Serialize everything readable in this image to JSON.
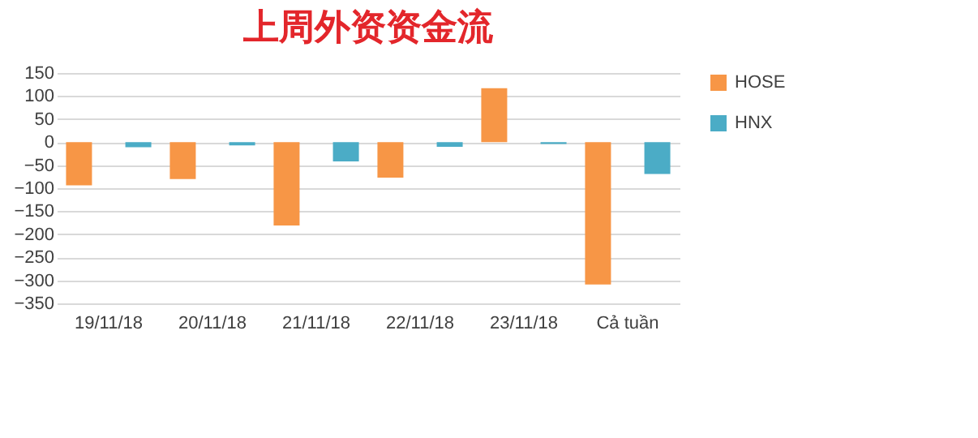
{
  "chart_data": {
    "type": "bar",
    "title": "上周外资资金流",
    "categories": [
      "19/11/18",
      "20/11/18",
      "21/11/18",
      "22/11/18",
      "23/11/18",
      "Cả tuần"
    ],
    "series": [
      {
        "name": "HOSE",
        "color": "#f79646",
        "values": [
          -94,
          -80,
          -181,
          -77,
          117,
          -309
        ]
      },
      {
        "name": "HNX",
        "color": "#4bacc6",
        "values": [
          -11,
          -7,
          -42,
          -10,
          -4,
          -69
        ]
      }
    ],
    "ylim": [
      -350,
      150
    ],
    "yticks": [
      -350,
      -300,
      -250,
      -200,
      -150,
      -100,
      -50,
      0,
      50,
      100,
      150
    ],
    "grid": "y",
    "legend": "right"
  }
}
